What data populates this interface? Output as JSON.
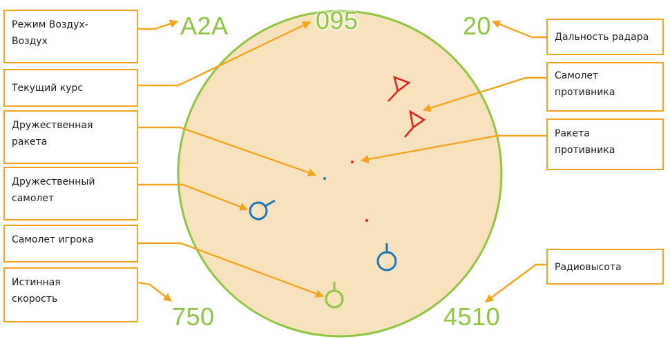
{
  "colors": {
    "radar_fill": "#f8e1bd",
    "radar_border": "#8cc63f",
    "callout": "#f5a31a",
    "hud_text": "#8cc63f",
    "enemy": "#e2231a",
    "friendly": "#1b75bc",
    "player": "#8cc63f"
  },
  "hud": {
    "mode": "A2A",
    "heading": "095",
    "range": "20",
    "speed": "750",
    "altitude": "4510"
  },
  "labels": {
    "mode": [
      "Режим Воздух-",
      "Воздух"
    ],
    "heading": [
      "Текущий курс"
    ],
    "friendly_missile": [
      "Дружественная",
      "ракета"
    ],
    "friendly_aircraft": [
      "Дружественный",
      "самолет"
    ],
    "player_aircraft": [
      "Самолет игрока"
    ],
    "true_speed": [
      "Истинная",
      "скорость"
    ],
    "radar_range": [
      "Дальность радара"
    ],
    "enemy_aircraft": [
      "Самолет",
      "противника"
    ],
    "enemy_missile": [
      "Ракета",
      "противника"
    ],
    "radio_altitude": [
      "Радиовысота"
    ]
  },
  "icons": {
    "enemy_aircraft": "enemy-aircraft-icon",
    "enemy_missile": "enemy-missile-dot",
    "friendly_aircraft": "friendly-aircraft-icon",
    "friendly_missile": "friendly-missile-dot",
    "player_aircraft": "player-aircraft-icon"
  }
}
